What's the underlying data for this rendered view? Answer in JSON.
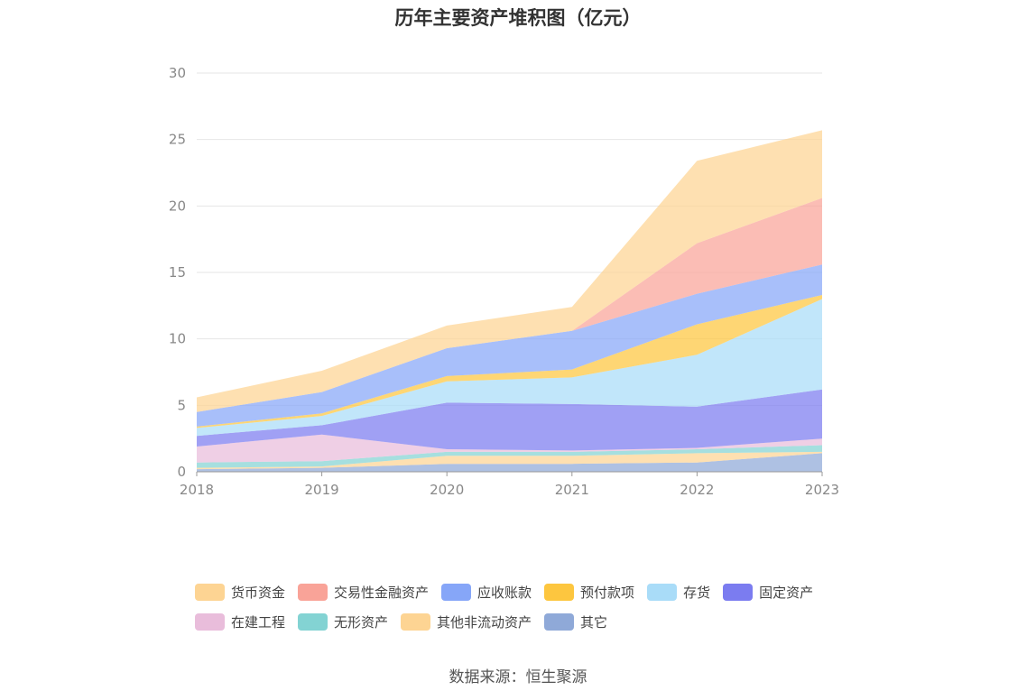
{
  "chart_data": {
    "type": "area",
    "stacked": true,
    "title": "历年主要资产堆积图（亿元）",
    "categories": [
      "2018",
      "2019",
      "2020",
      "2021",
      "2022",
      "2023"
    ],
    "ylim": [
      0,
      30
    ],
    "yticks": [
      0,
      5,
      10,
      15,
      20,
      25,
      30
    ],
    "grid": true,
    "legend_position": "bottom",
    "series": [
      {
        "name": "其它",
        "color": "#8fa9d8",
        "values": [
          0.2,
          0.3,
          0.6,
          0.6,
          0.7,
          1.4
        ]
      },
      {
        "name": "其他非流动资产",
        "color": "#fdd493",
        "values": [
          0.1,
          0.1,
          0.6,
          0.6,
          0.7,
          0.1
        ]
      },
      {
        "name": "无形资产",
        "color": "#83d3d3",
        "values": [
          0.4,
          0.4,
          0.3,
          0.3,
          0.3,
          0.5
        ]
      },
      {
        "name": "在建工程",
        "color": "#e9bddb",
        "values": [
          1.2,
          2.0,
          0.2,
          0.1,
          0.1,
          0.5
        ]
      },
      {
        "name": "固定资产",
        "color": "#7b7cf0",
        "values": [
          0.8,
          0.7,
          3.5,
          3.5,
          3.1,
          3.7
        ]
      },
      {
        "name": "存货",
        "color": "#a9dcf8",
        "values": [
          0.6,
          0.7,
          1.6,
          2.0,
          3.9,
          6.8
        ]
      },
      {
        "name": "预付款项",
        "color": "#fdc63f",
        "values": [
          0.1,
          0.2,
          0.4,
          0.6,
          2.3,
          0.3
        ]
      },
      {
        "name": "应收账款",
        "color": "#86a6f8",
        "values": [
          1.1,
          1.6,
          2.1,
          2.9,
          2.3,
          2.3
        ]
      },
      {
        "name": "交易性金融资产",
        "color": "#f9a398",
        "values": [
          0,
          0,
          0,
          0,
          3.8,
          5.0
        ]
      },
      {
        "name": "货币资金",
        "color": "#fdd493",
        "values": [
          1.1,
          1.6,
          1.7,
          1.8,
          6.2,
          5.1
        ]
      }
    ]
  },
  "legend": {
    "row1": [
      {
        "label": "货币资金",
        "color": "#fdd493"
      },
      {
        "label": "交易性金融资产",
        "color": "#f9a398"
      },
      {
        "label": "应收账款",
        "color": "#86a6f8"
      },
      {
        "label": "预付款项",
        "color": "#fdc63f"
      },
      {
        "label": "存货",
        "color": "#a9dcf8"
      },
      {
        "label": "固定资产",
        "color": "#7b7cf0"
      }
    ],
    "row2": [
      {
        "label": "在建工程",
        "color": "#e9bddb"
      },
      {
        "label": "无形资产",
        "color": "#83d3d3"
      },
      {
        "label": "其他非流动资产",
        "color": "#fdd493"
      },
      {
        "label": "其它",
        "color": "#8fa9d8"
      }
    ]
  },
  "source": "数据来源：恒生聚源"
}
